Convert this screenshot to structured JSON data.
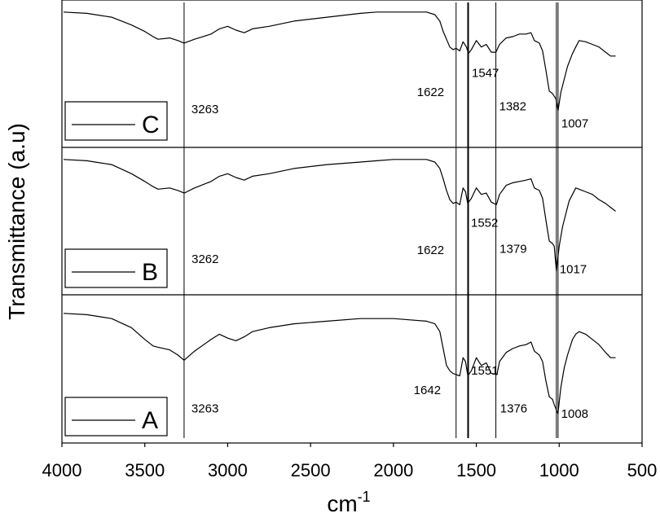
{
  "chart_data": {
    "type": "line",
    "title": "",
    "xlabel": "cm",
    "xlabel_superscript": "-1",
    "ylabel": "Transmittance (a.u)",
    "xlim": [
      4000,
      500
    ],
    "x_reversed": true,
    "x_ticks": [
      4000,
      3500,
      3000,
      2500,
      2000,
      1500,
      1000,
      500
    ],
    "grid": false,
    "legend_placement": "bottom-left of each panel",
    "reference_lines": [
      3263,
      1622,
      1547,
      1382,
      1007
    ],
    "panels": [
      {
        "legend": "C",
        "ylim": [
          0,
          1
        ],
        "annotations": [
          {
            "x": 3263,
            "text": "3263",
            "y": 0.19
          },
          {
            "x": 1622,
            "text": "1622",
            "y": 0.32
          },
          {
            "x": 1547,
            "text": "1547",
            "y": 0.47
          },
          {
            "x": 1382,
            "text": "1382",
            "y": 0.21
          },
          {
            "x": 1007,
            "text": "1007",
            "y": 0.08
          }
        ],
        "x": [
          3990,
          3850,
          3700,
          3580,
          3500,
          3450,
          3420,
          3350,
          3300,
          3263,
          3200,
          3100,
          3050,
          3000,
          2950,
          2900,
          2850,
          2750,
          2600,
          2400,
          2200,
          2100,
          2000,
          1900,
          1800,
          1750,
          1720,
          1700,
          1680,
          1660,
          1640,
          1622,
          1600,
          1580,
          1560,
          1547,
          1530,
          1500,
          1470,
          1440,
          1410,
          1382,
          1360,
          1320,
          1280,
          1240,
          1200,
          1170,
          1150,
          1120,
          1100,
          1080,
          1060,
          1040,
          1020,
          1007,
          990,
          970,
          950,
          920,
          900,
          880,
          840,
          800,
          760,
          720,
          690,
          660
        ],
        "values": [
          0.97,
          0.96,
          0.93,
          0.87,
          0.82,
          0.78,
          0.76,
          0.77,
          0.75,
          0.73,
          0.76,
          0.8,
          0.84,
          0.86,
          0.83,
          0.81,
          0.84,
          0.86,
          0.9,
          0.93,
          0.96,
          0.97,
          0.97,
          0.97,
          0.97,
          0.95,
          0.9,
          0.82,
          0.76,
          0.7,
          0.68,
          0.69,
          0.67,
          0.74,
          0.7,
          0.65,
          0.68,
          0.75,
          0.7,
          0.72,
          0.66,
          0.66,
          0.72,
          0.77,
          0.78,
          0.8,
          0.8,
          0.81,
          0.75,
          0.73,
          0.67,
          0.52,
          0.36,
          0.34,
          0.3,
          0.21,
          0.35,
          0.45,
          0.55,
          0.65,
          0.7,
          0.75,
          0.74,
          0.72,
          0.7,
          0.66,
          0.63,
          0.63
        ]
      },
      {
        "legend": "B",
        "ylim": [
          0,
          1
        ],
        "annotations": [
          {
            "x": 3262,
            "text": "3262",
            "y": 0.17
          },
          {
            "x": 1622,
            "text": "1622",
            "y": 0.24
          },
          {
            "x": 1552,
            "text": "1552",
            "y": 0.45
          },
          {
            "x": 1379,
            "text": "1379",
            "y": 0.25
          },
          {
            "x": 1017,
            "text": "1017",
            "y": 0.09
          }
        ],
        "x": [
          3990,
          3850,
          3700,
          3580,
          3500,
          3450,
          3420,
          3350,
          3300,
          3262,
          3200,
          3100,
          3050,
          3000,
          2950,
          2900,
          2850,
          2750,
          2600,
          2400,
          2200,
          2100,
          2000,
          1900,
          1800,
          1750,
          1720,
          1700,
          1680,
          1660,
          1640,
          1622,
          1600,
          1580,
          1565,
          1552,
          1530,
          1500,
          1470,
          1440,
          1410,
          1379,
          1360,
          1320,
          1280,
          1240,
          1200,
          1170,
          1150,
          1120,
          1100,
          1080,
          1060,
          1040,
          1030,
          1017,
          1000,
          980,
          960,
          940,
          920,
          900,
          880,
          840,
          800,
          760,
          720,
          690,
          660
        ],
        "values": [
          0.97,
          0.96,
          0.93,
          0.86,
          0.8,
          0.76,
          0.74,
          0.75,
          0.73,
          0.71,
          0.75,
          0.8,
          0.84,
          0.86,
          0.83,
          0.81,
          0.84,
          0.86,
          0.9,
          0.93,
          0.95,
          0.96,
          0.97,
          0.97,
          0.97,
          0.95,
          0.9,
          0.82,
          0.73,
          0.66,
          0.63,
          0.64,
          0.62,
          0.75,
          0.72,
          0.63,
          0.67,
          0.75,
          0.7,
          0.71,
          0.64,
          0.62,
          0.7,
          0.77,
          0.79,
          0.8,
          0.81,
          0.82,
          0.75,
          0.73,
          0.67,
          0.5,
          0.34,
          0.32,
          0.3,
          0.11,
          0.3,
          0.45,
          0.55,
          0.65,
          0.7,
          0.75,
          0.74,
          0.72,
          0.7,
          0.66,
          0.63,
          0.6,
          0.57
        ]
      },
      {
        "legend": "A",
        "ylim": [
          0,
          1
        ],
        "annotations": [
          {
            "x": 3263,
            "text": "3263",
            "y": 0.16
          },
          {
            "x": 1642,
            "text": "1642",
            "y": 0.3
          },
          {
            "x": 1551,
            "text": "1551",
            "y": 0.45
          },
          {
            "x": 1376,
            "text": "1376",
            "y": 0.16
          },
          {
            "x": 1008,
            "text": "1008",
            "y": 0.12
          }
        ],
        "x": [
          3990,
          3850,
          3700,
          3580,
          3500,
          3450,
          3420,
          3350,
          3300,
          3263,
          3200,
          3100,
          3050,
          3000,
          2950,
          2900,
          2850,
          2750,
          2600,
          2400,
          2200,
          2100,
          2000,
          1900,
          1800,
          1750,
          1720,
          1700,
          1680,
          1660,
          1642,
          1622,
          1600,
          1580,
          1565,
          1551,
          1530,
          1500,
          1470,
          1440,
          1410,
          1376,
          1360,
          1320,
          1280,
          1240,
          1200,
          1170,
          1150,
          1120,
          1100,
          1080,
          1060,
          1040,
          1030,
          1008,
          990,
          970,
          950,
          920,
          900,
          880,
          840,
          800,
          760,
          720,
          690,
          660
        ],
        "values": [
          0.92,
          0.91,
          0.88,
          0.81,
          0.72,
          0.67,
          0.66,
          0.64,
          0.6,
          0.56,
          0.63,
          0.72,
          0.76,
          0.73,
          0.71,
          0.74,
          0.78,
          0.81,
          0.84,
          0.86,
          0.88,
          0.88,
          0.88,
          0.87,
          0.86,
          0.84,
          0.78,
          0.65,
          0.52,
          0.48,
          0.46,
          0.45,
          0.44,
          0.58,
          0.55,
          0.44,
          0.48,
          0.58,
          0.52,
          0.54,
          0.46,
          0.45,
          0.55,
          0.62,
          0.65,
          0.67,
          0.68,
          0.7,
          0.63,
          0.6,
          0.55,
          0.4,
          0.28,
          0.26,
          0.22,
          0.15,
          0.35,
          0.5,
          0.6,
          0.72,
          0.76,
          0.78,
          0.76,
          0.72,
          0.68,
          0.62,
          0.58,
          0.58
        ]
      }
    ]
  }
}
